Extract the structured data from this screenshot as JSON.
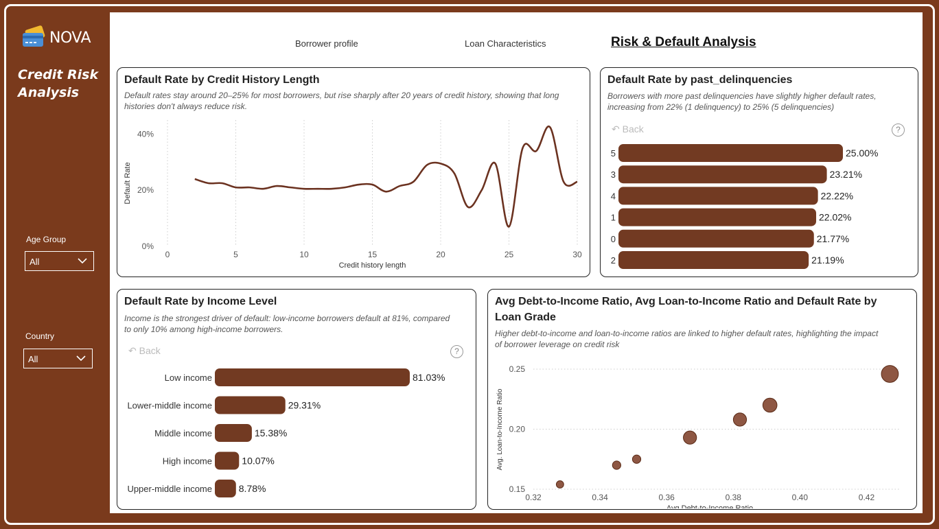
{
  "sidebar": {
    "logo_text": "NOVA",
    "title_line1": "Credit Risk",
    "title_line2": "Analysis",
    "filters": [
      {
        "label": "Age Group",
        "value": "All"
      },
      {
        "label": "Country",
        "value": "All"
      }
    ]
  },
  "tabs": [
    {
      "label": "Borrower profile",
      "active": false
    },
    {
      "label": "Loan Characteristics",
      "active": false
    },
    {
      "label": "Risk & Default Analysis",
      "active": true
    }
  ],
  "colors": {
    "accent": "#7a3a1c",
    "bar": "#723a22",
    "line": "#6b3220"
  },
  "cards": {
    "credit_history": {
      "title": "Default Rate by Credit History Length",
      "subtitle_line1": "Default rates stay around 20–25% for most borrowers, but rise sharply after 20 years of credit history, showing that long",
      "subtitle_line2": "histories don't always reduce risk."
    },
    "delinquencies": {
      "title": "Default Rate by past_delinquencies",
      "subtitle_line1": "Borrowers with more past delinquencies have slightly higher default rates,",
      "subtitle_line2": "increasing from 22% (1 delinquency) to 25% (5 delinquencies)",
      "back_label": "Back",
      "help_label": "?"
    },
    "income": {
      "title": "Default Rate by Income Level",
      "subtitle_line1": "Income is the strongest driver of default: low-income borrowers default at 81%, compared",
      "subtitle_line2": "to only 10% among high-income borrowers.",
      "back_label": "Back",
      "help_label": "?"
    },
    "grade": {
      "title_line1": "Avg Debt-to-Income Ratio, Avg Loan-to-Income Ratio and Default Rate by",
      "title_line2": "Loan Grade",
      "subtitle_line1": "Higher debt-to-income and loan-to-income ratios are linked to higher default rates, highlighting the impact",
      "subtitle_line2": "of borrower leverage on credit risk"
    }
  },
  "chart_data": [
    {
      "type": "line",
      "title": "Default Rate by Credit History Length",
      "xlabel": "Credit history length",
      "ylabel": "Default Rate",
      "xlim": [
        0,
        30
      ],
      "ylim": [
        0,
        0.45
      ],
      "x_ticks": [
        0,
        5,
        10,
        15,
        20,
        25,
        30
      ],
      "y_ticks": [
        0,
        0.2,
        0.4
      ],
      "y_tick_labels": [
        "0%",
        "20%",
        "40%"
      ],
      "grid": "vertical dotted",
      "x": [
        2,
        3,
        4,
        5,
        6,
        7,
        8,
        9,
        10,
        11,
        12,
        13,
        14,
        15,
        16,
        17,
        18,
        19,
        20,
        21,
        22,
        23,
        24,
        25,
        26,
        27,
        28,
        29,
        30
      ],
      "y": [
        0.24,
        0.225,
        0.225,
        0.21,
        0.21,
        0.205,
        0.215,
        0.21,
        0.205,
        0.205,
        0.205,
        0.21,
        0.22,
        0.22,
        0.195,
        0.215,
        0.23,
        0.29,
        0.295,
        0.26,
        0.14,
        0.2,
        0.295,
        0.07,
        0.35,
        0.34,
        0.425,
        0.23,
        0.23
      ]
    },
    {
      "type": "bar",
      "orientation": "horizontal",
      "title": "Default Rate by past_delinquencies",
      "categories": [
        "5",
        "3",
        "4",
        "1",
        "0",
        "2"
      ],
      "values": [
        25.0,
        23.21,
        22.22,
        22.02,
        21.77,
        21.19
      ],
      "value_labels": [
        "25.00%",
        "23.21%",
        "22.22%",
        "22.02%",
        "21.77%",
        "21.19%"
      ]
    },
    {
      "type": "bar",
      "orientation": "horizontal",
      "title": "Default Rate by Income Level",
      "categories": [
        "Low income",
        "Lower-middle income",
        "Middle income",
        "High income",
        "Upper-middle income"
      ],
      "values": [
        81.03,
        29.31,
        15.38,
        10.07,
        8.78
      ],
      "value_labels": [
        "81.03%",
        "29.31%",
        "15.38%",
        "10.07%",
        "8.78%"
      ]
    },
    {
      "type": "scatter",
      "title": "Avg Debt-to-Income Ratio, Avg Loan-to-Income Ratio and Default Rate by Loan Grade",
      "xlabel": "Avg Debt-to-Income Ratio",
      "ylabel": "Avg. Loan-to-Income Ratio",
      "xlim": [
        0.32,
        0.43
      ],
      "ylim": [
        0.15,
        0.25
      ],
      "x_ticks": [
        0.32,
        0.34,
        0.36,
        0.38,
        0.4,
        0.42
      ],
      "x_tick_labels": [
        "0.32",
        "0.34",
        "0.36",
        "0.38",
        "0.40",
        "0.42"
      ],
      "y_ticks": [
        0.15,
        0.2,
        0.25
      ],
      "y_tick_labels": [
        "0.15",
        "0.20",
        "0.25"
      ],
      "size_encoding": "Default Rate",
      "points": [
        {
          "x": 0.328,
          "y": 0.154,
          "size": 0.1
        },
        {
          "x": 0.345,
          "y": 0.17,
          "size": 0.15
        },
        {
          "x": 0.351,
          "y": 0.175,
          "size": 0.15
        },
        {
          "x": 0.367,
          "y": 0.193,
          "size": 0.4
        },
        {
          "x": 0.382,
          "y": 0.208,
          "size": 0.4
        },
        {
          "x": 0.391,
          "y": 0.22,
          "size": 0.45
        },
        {
          "x": 0.427,
          "y": 0.246,
          "size": 0.6
        }
      ]
    }
  ]
}
